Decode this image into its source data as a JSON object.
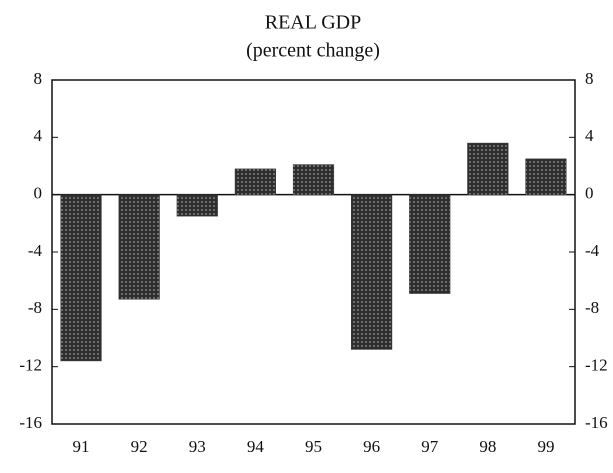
{
  "chart_data": {
    "type": "bar",
    "title": "REAL GDP",
    "subtitle": "(percent change)",
    "categories": [
      "91",
      "92",
      "93",
      "94",
      "95",
      "96",
      "97",
      "98",
      "99"
    ],
    "values": [
      -11.6,
      -7.3,
      -1.5,
      1.8,
      2.1,
      -10.8,
      -6.9,
      3.6,
      2.5
    ],
    "color": "#3a3a3a",
    "ylim": [
      -16,
      8
    ],
    "yticks": [
      -16,
      -12,
      -8,
      -4,
      0,
      4,
      8
    ],
    "grid": false
  }
}
